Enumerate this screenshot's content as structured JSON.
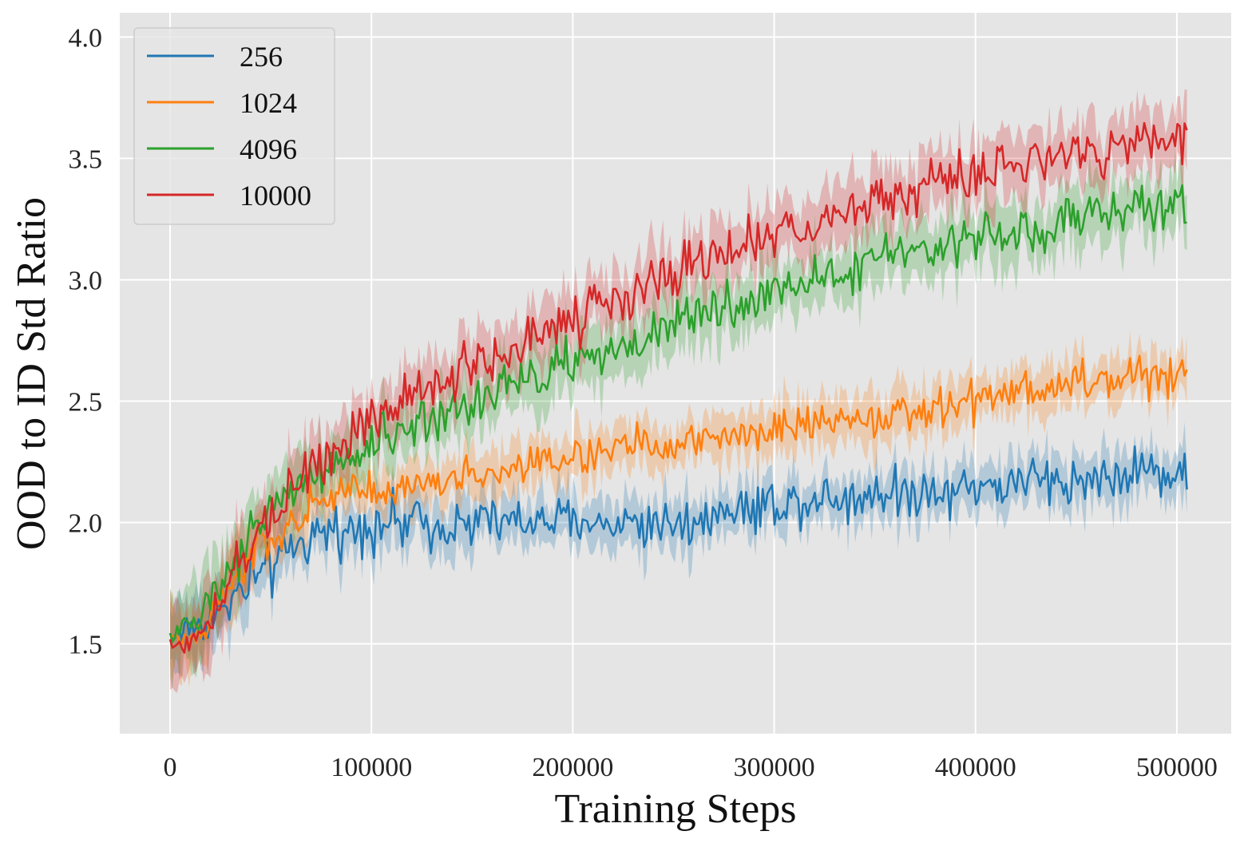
{
  "chart_data": {
    "type": "line",
    "title": "",
    "xlabel": "Training Steps",
    "ylabel": "OOD to ID Std Ratio",
    "xlim": [
      -25000,
      527000
    ],
    "ylim": [
      1.13,
      4.1
    ],
    "xticks": [
      0,
      100000,
      200000,
      300000,
      400000,
      500000
    ],
    "xtick_labels": [
      "0",
      "100000",
      "200000",
      "300000",
      "400000",
      "500000"
    ],
    "yticks": [
      1.5,
      2.0,
      2.5,
      3.0,
      3.5,
      4.0
    ],
    "ytick_labels": [
      "1.5",
      "2.0",
      "2.5",
      "3.0",
      "3.5",
      "4.0"
    ],
    "grid": true,
    "legend_position": "top-left",
    "x_start": 0,
    "x_end": 505000,
    "series": [
      {
        "name": "256",
        "color": "#1f77b4",
        "anchors": [
          [
            0,
            1.53
          ],
          [
            5000,
            1.55
          ],
          [
            20000,
            1.6
          ],
          [
            40000,
            1.75
          ],
          [
            60000,
            1.88
          ],
          [
            80000,
            1.96
          ],
          [
            100000,
            2.0
          ],
          [
            150000,
            2.0
          ],
          [
            200000,
            2.0
          ],
          [
            250000,
            2.0
          ],
          [
            300000,
            2.08
          ],
          [
            350000,
            2.12
          ],
          [
            400000,
            2.15
          ],
          [
            450000,
            2.18
          ],
          [
            505000,
            2.22
          ]
        ],
        "noise": 0.07,
        "band": 0.08
      },
      {
        "name": "1024",
        "color": "#ff7f0e",
        "anchors": [
          [
            0,
            1.53
          ],
          [
            5000,
            1.5
          ],
          [
            20000,
            1.6
          ],
          [
            40000,
            1.85
          ],
          [
            60000,
            2.0
          ],
          [
            80000,
            2.1
          ],
          [
            100000,
            2.12
          ],
          [
            150000,
            2.18
          ],
          [
            200000,
            2.27
          ],
          [
            250000,
            2.33
          ],
          [
            300000,
            2.38
          ],
          [
            350000,
            2.43
          ],
          [
            400000,
            2.5
          ],
          [
            450000,
            2.57
          ],
          [
            505000,
            2.62
          ]
        ],
        "noise": 0.055,
        "band": 0.08
      },
      {
        "name": "4096",
        "color": "#2ca02c",
        "anchors": [
          [
            0,
            1.53
          ],
          [
            5000,
            1.56
          ],
          [
            20000,
            1.65
          ],
          [
            40000,
            1.95
          ],
          [
            60000,
            2.12
          ],
          [
            80000,
            2.22
          ],
          [
            100000,
            2.33
          ],
          [
            150000,
            2.5
          ],
          [
            200000,
            2.67
          ],
          [
            250000,
            2.8
          ],
          [
            300000,
            2.95
          ],
          [
            350000,
            3.07
          ],
          [
            400000,
            3.17
          ],
          [
            450000,
            3.25
          ],
          [
            505000,
            3.33
          ]
        ],
        "noise": 0.065,
        "band": 0.1
      },
      {
        "name": "10000",
        "color": "#d62728",
        "anchors": [
          [
            0,
            1.5
          ],
          [
            5000,
            1.48
          ],
          [
            10000,
            1.5
          ],
          [
            20000,
            1.6
          ],
          [
            40000,
            1.9
          ],
          [
            60000,
            2.15
          ],
          [
            80000,
            2.3
          ],
          [
            100000,
            2.42
          ],
          [
            150000,
            2.65
          ],
          [
            200000,
            2.85
          ],
          [
            250000,
            3.02
          ],
          [
            300000,
            3.17
          ],
          [
            350000,
            3.32
          ],
          [
            400000,
            3.45
          ],
          [
            450000,
            3.52
          ],
          [
            505000,
            3.62
          ]
        ],
        "noise": 0.07,
        "band": 0.1
      }
    ]
  }
}
